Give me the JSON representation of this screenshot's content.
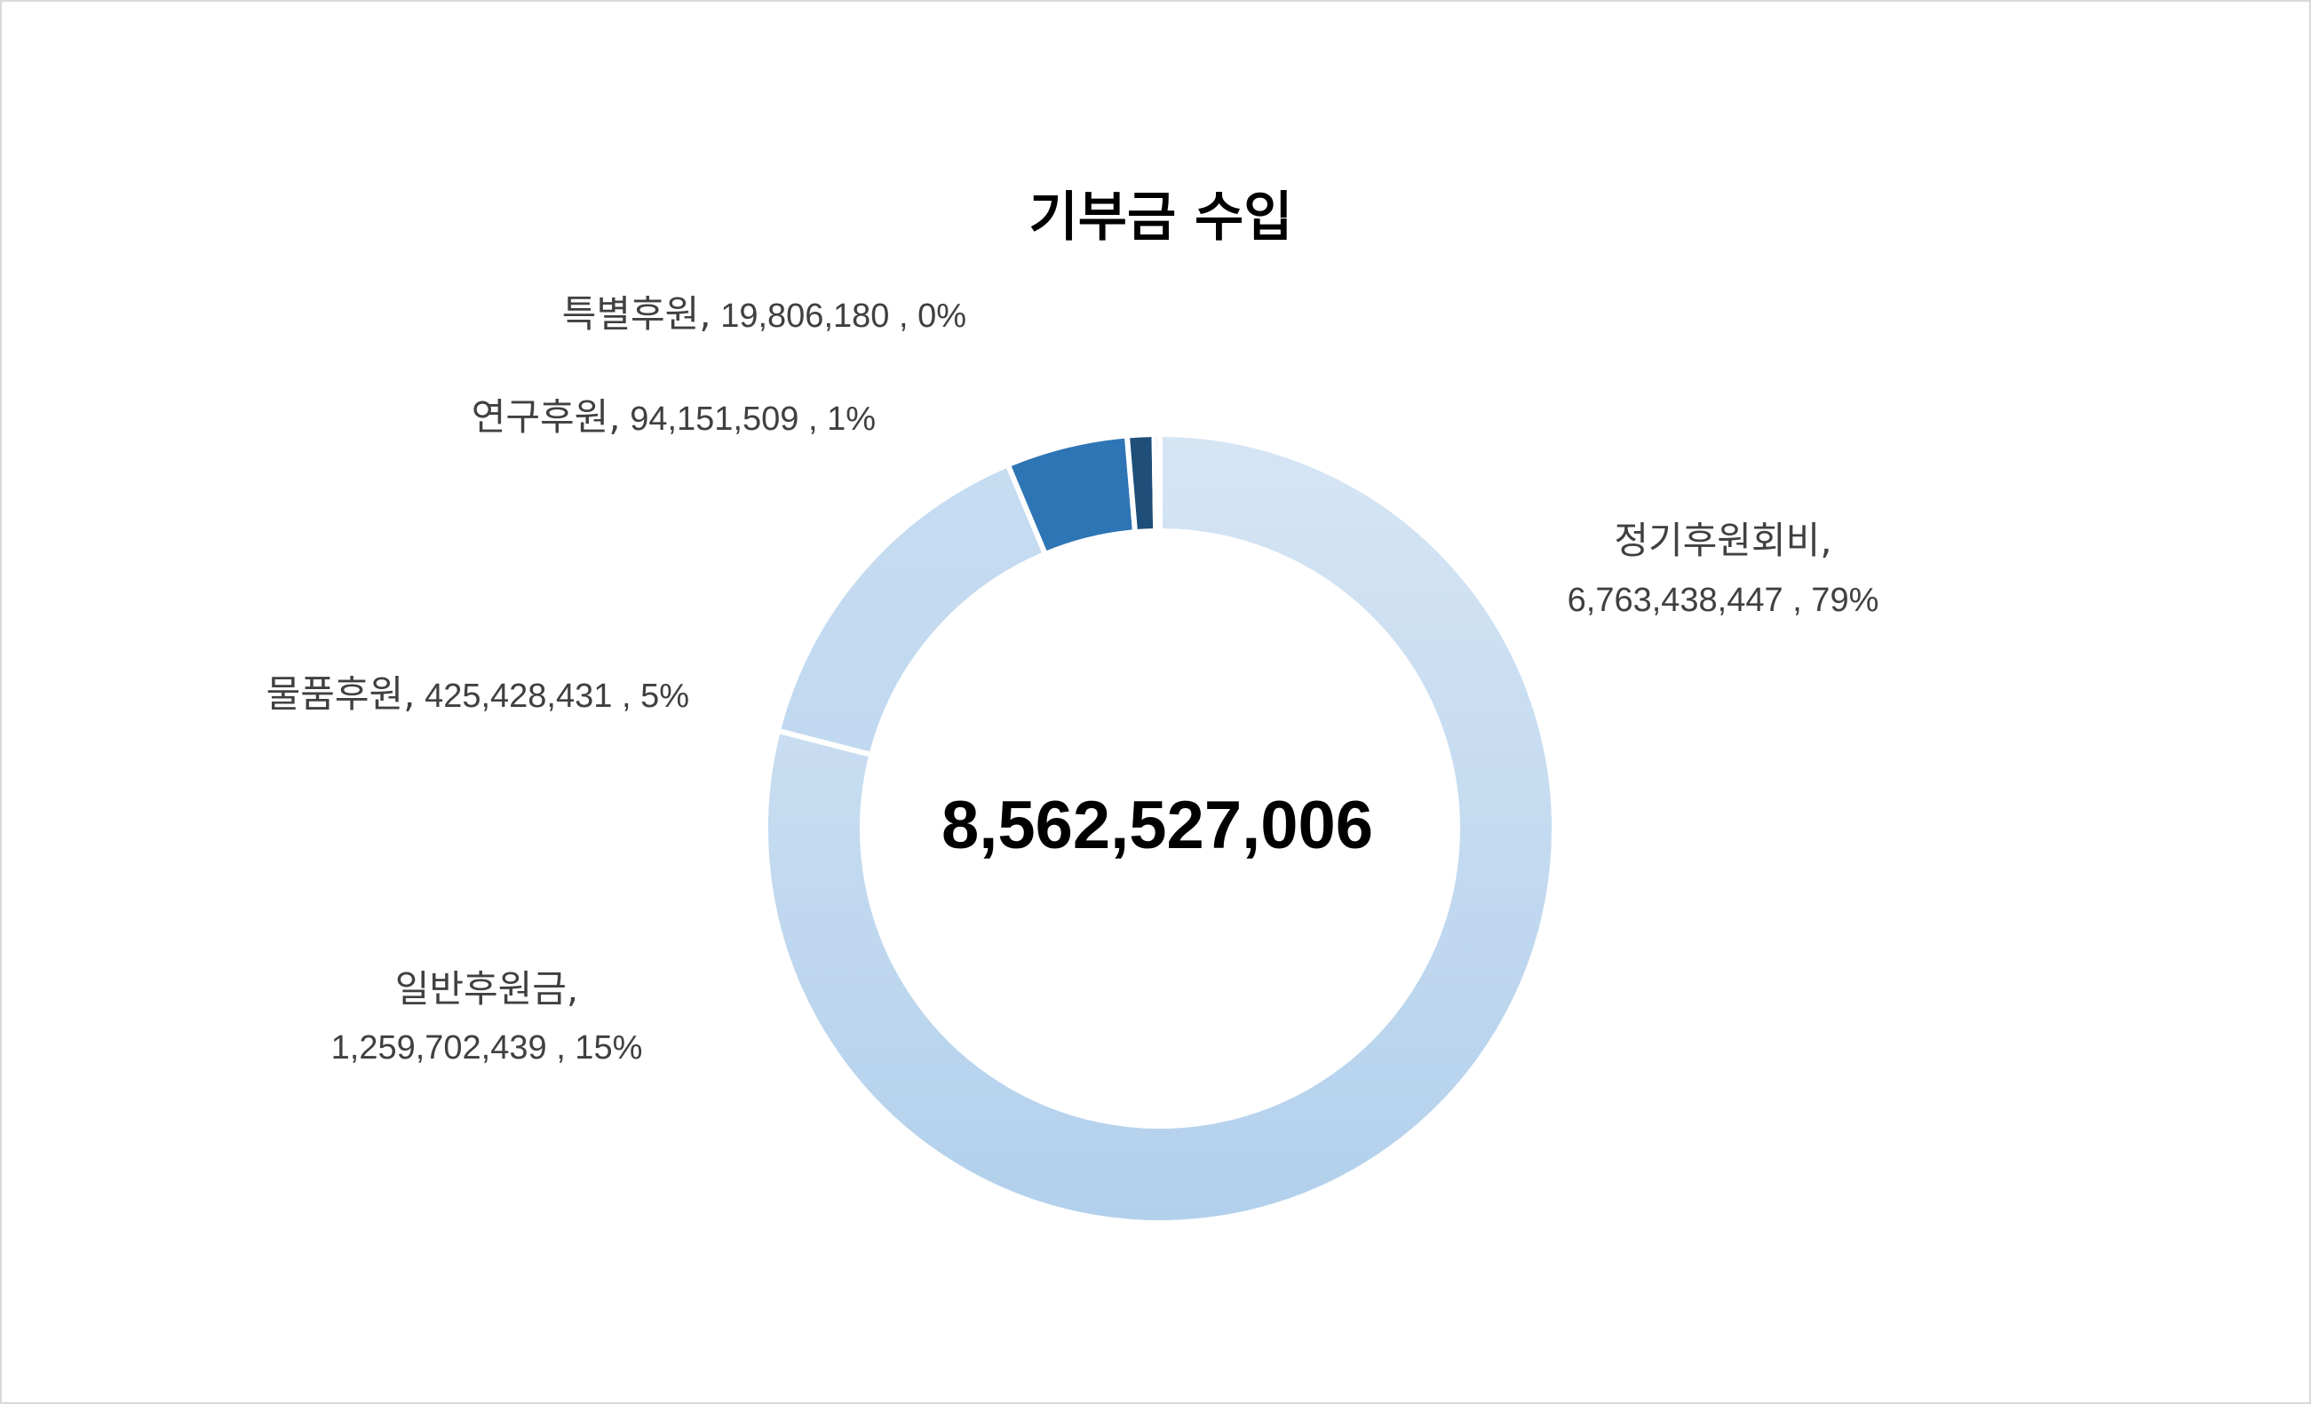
{
  "chart_data": {
    "type": "pie",
    "variant": "donut",
    "title": "기부금 수입",
    "center_label": "8,562,527,006",
    "legend": "none",
    "slices": [
      {
        "category": "정기후원회비",
        "value": 6763438447,
        "value_label": "6,763,438,447",
        "percent_label": "79%",
        "color_top": "#d6e5f4",
        "color_bottom": "#b2d0ec"
      },
      {
        "category": "일반후원금",
        "value": 1259702439,
        "value_label": "1,259,702,439",
        "percent_label": "15%",
        "color_top": "#c6dcf1",
        "color_bottom": "#b9d4ee"
      },
      {
        "category": "물품후원",
        "value": 425428431,
        "value_label": "425,428,431",
        "percent_label": "5%",
        "color_top": "#2e75b6",
        "color_bottom": "#bcd6ef"
      },
      {
        "category": "연구후원",
        "value": 94151509,
        "value_label": "94,151,509",
        "percent_label": "1%",
        "color_top": "#1f4e79",
        "color_bottom": "#1f4e79"
      },
      {
        "category": "특별후원",
        "value": 19806180,
        "value_label": "19,806,180",
        "percent_label": "0%",
        "color_top": "#bdd7ee",
        "color_bottom": "#bdd7ee"
      }
    ]
  }
}
